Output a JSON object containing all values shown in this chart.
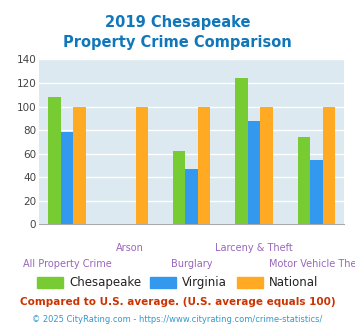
{
  "title_line1": "2019 Chesapeake",
  "title_line2": "Property Crime Comparison",
  "categories": [
    "All Property Crime",
    "Arson",
    "Burglary",
    "Larceny & Theft",
    "Motor Vehicle Theft"
  ],
  "series": {
    "Chesapeake": [
      108,
      null,
      62,
      124,
      74
    ],
    "Virginia": [
      78,
      null,
      47,
      88,
      55
    ],
    "National": [
      100,
      100,
      100,
      100,
      100
    ]
  },
  "colors": {
    "Chesapeake": "#77cc33",
    "Virginia": "#3399ee",
    "National": "#ffaa22"
  },
  "ylim": [
    0,
    140
  ],
  "yticks": [
    0,
    20,
    40,
    60,
    80,
    100,
    120,
    140
  ],
  "background_color": "#dce9f0",
  "grid_color": "#ffffff",
  "title_color": "#1177bb",
  "xlabel_color": "#9966bb",
  "legend_text_color": "#222222",
  "footnote1": "Compared to U.S. average. (U.S. average equals 100)",
  "footnote2": "© 2025 CityRating.com - https://www.cityrating.com/crime-statistics/",
  "footnote1_color": "#cc3300",
  "footnote2_color": "#3399cc"
}
